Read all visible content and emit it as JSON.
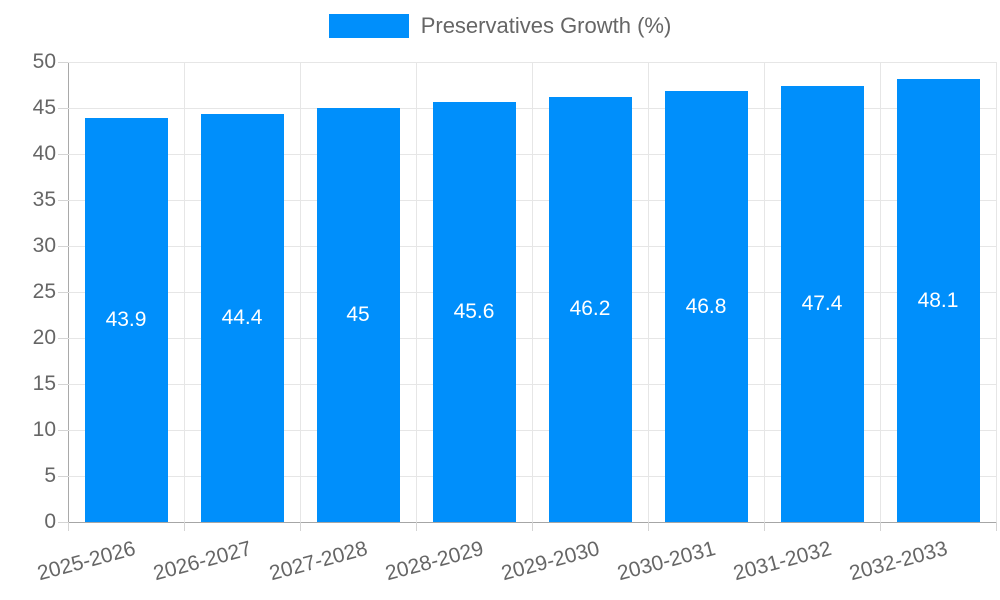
{
  "legend": {
    "label": "Preservatives Growth (%)"
  },
  "chart_data": {
    "type": "bar",
    "title": "",
    "xlabel": "",
    "ylabel": "",
    "categories": [
      "2025-2026",
      "2026-2027",
      "2027-2028",
      "2028-2029",
      "2029-2030",
      "2030-2031",
      "2031-2032",
      "2032-2033"
    ],
    "series": [
      {
        "name": "Preservatives Growth (%)",
        "values": [
          43.9,
          44.4,
          45,
          45.6,
          46.2,
          46.8,
          47.4,
          48.1
        ]
      }
    ],
    "yticks": [
      0,
      5,
      10,
      15,
      20,
      25,
      30,
      35,
      40,
      45,
      50
    ],
    "ylim": [
      0,
      50
    ],
    "grid": true,
    "legend_position": "top-center",
    "value_labels": "inside-center",
    "xtick_rotation_deg": -15
  },
  "colors": {
    "bar": "#008FFB",
    "grid": "#e6e6e6",
    "axis": "#a9a9a9",
    "tick_text": "#666666",
    "legend_text": "#666666",
    "value_label_text": "#ffffff",
    "background": "#ffffff"
  }
}
